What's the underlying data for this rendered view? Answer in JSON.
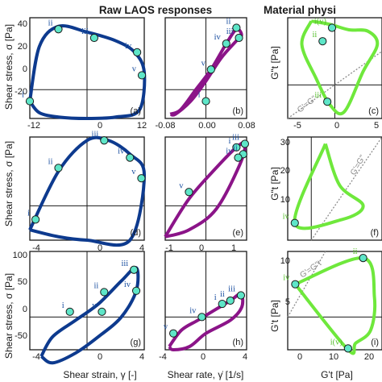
{
  "headers": {
    "left": "Raw LAOS responses",
    "right": "Material physi"
  },
  "axis_labels": {
    "shear_stress": "Shear stress, σ [Pa]",
    "shear_strain": "Shear strain, γ [-]",
    "shear_rate": "Shear rate, γ̇ [1/s]",
    "g2_top": "G\"t [Pa]",
    "g2_mid": "G\"t [Pa]",
    "g1_bottom_y": "G't [Pa]",
    "g1_x": "G't [Pa]"
  },
  "diag_labels": {
    "top": "G'=G\"",
    "mid": "G'=G\"",
    "bottom": "G'=G\"t"
  },
  "colors": {
    "blue": "#0d3a8e",
    "purple": "#8b1488",
    "green": "#6fe83c",
    "point_fill": "#5ee6c8",
    "label_blue": "#1b4fa0",
    "label_green": "#59c030",
    "grid": "#1a1a1a",
    "dotted": "#8c8c8c"
  },
  "chart_data": [
    {
      "panel": "a",
      "type": "line",
      "xlim": [
        -12,
        12
      ],
      "ylim": [
        -20,
        50
      ],
      "xticks": [
        "-12",
        "0",
        "12"
      ],
      "yticks": [
        "-20",
        "0",
        "20",
        "40"
      ],
      "series": [
        {
          "x": [
            -12,
            -10,
            -6,
            0,
            6,
            10,
            12,
            11,
            6,
            0,
            -6,
            -10,
            -12
          ],
          "y": [
            -8,
            30,
            44,
            40,
            34,
            26,
            12,
            -14,
            -19,
            -20,
            -19,
            -16,
            -8
          ]
        }
      ],
      "points": [
        {
          "label": "i",
          "x": -12,
          "y": -8
        },
        {
          "label": "ii",
          "x": -6,
          "y": 42
        },
        {
          "label": "iii",
          "x": 1.5,
          "y": 36
        },
        {
          "label": "iv",
          "x": 10.5,
          "y": 26
        },
        {
          "label": "v",
          "x": 11.5,
          "y": 10
        }
      ]
    },
    {
      "panel": "b",
      "type": "line",
      "xlim": [
        -0.08,
        0.08
      ],
      "ylim": [
        -20,
        50
      ],
      "xticks": [
        "-0.08",
        "0.00",
        "0.08"
      ],
      "yticks": [],
      "series": [
        {
          "x": [
            -0.07,
            -0.05,
            -0.02,
            0.01,
            0.04,
            0.06,
            0.07,
            0.06,
            0.03,
            0.0,
            -0.03,
            -0.06,
            -0.07
          ],
          "y": [
            -17,
            -14,
            0,
            14,
            32,
            42,
            38,
            34,
            22,
            6,
            -8,
            -17,
            -17
          ]
        }
      ],
      "points": [
        {
          "label": "i",
          "x": 0.0,
          "y": -8
        },
        {
          "label": "ii",
          "x": 0.06,
          "y": 43
        },
        {
          "label": "iii",
          "x": 0.065,
          "y": 36
        },
        {
          "label": "iv",
          "x": 0.04,
          "y": 32
        },
        {
          "label": "v",
          "x": 0.01,
          "y": 14
        }
      ]
    },
    {
      "panel": "c",
      "type": "line",
      "xlim": [
        -5,
        5
      ],
      "ylim": [
        -5,
        10
      ],
      "xticks": [
        "-5",
        "0",
        "5"
      ],
      "yticks": [],
      "series": [
        {
          "x": [
            -2.5,
            -0.5,
            1.5,
            3.5,
            4.5,
            3,
            1,
            -0.5,
            -2,
            -3.5,
            -2.5
          ],
          "y": [
            9.5,
            9,
            8.2,
            8,
            6,
            2,
            -4,
            -3,
            1,
            6,
            9.5
          ]
        }
      ],
      "points": [
        {
          "label": "i(v)",
          "x": -0.3,
          "y": 8.5
        },
        {
          "label": "ii",
          "x": -1.3,
          "y": 6.5
        },
        {
          "label": "iii",
          "x": -0.8,
          "y": -2.5
        }
      ]
    },
    {
      "panel": "d",
      "type": "line",
      "xlim": [
        -4,
        4
      ],
      "ylim": [
        -20,
        40
      ],
      "xticks": [
        "-4",
        "0",
        "4"
      ],
      "yticks": [],
      "series": [
        {
          "x": [
            -4,
            -2,
            0,
            1.5,
            3,
            4,
            3,
            0,
            -2,
            -4
          ],
          "y": [
            -14,
            20,
            38,
            38,
            30,
            18,
            -20,
            -20,
            -18,
            -14
          ]
        }
      ],
      "points": [
        {
          "label": "i",
          "x": -3.6,
          "y": -8
        },
        {
          "label": "ii",
          "x": -2,
          "y": 22
        },
        {
          "label": "iii",
          "x": 1.2,
          "y": 38
        },
        {
          "label": "iv",
          "x": 3,
          "y": 28
        },
        {
          "label": "v",
          "x": 3.8,
          "y": 16
        }
      ]
    },
    {
      "panel": "e",
      "type": "line",
      "xlim": [
        -1.2,
        1.2
      ],
      "ylim": [
        -20,
        40
      ],
      "xticks": [
        "-1",
        "0",
        "1"
      ],
      "yticks": [],
      "series": [
        {
          "x": [
            -1.2,
            -0.5,
            0.3,
            0.9,
            1.15,
            1.0,
            0.3,
            -0.5,
            -1.2
          ],
          "y": [
            -18,
            4,
            22,
            34,
            36,
            24,
            -2,
            -14,
            -18
          ]
        }
      ],
      "points": [
        {
          "label": "i",
          "x": 0.9,
          "y": 34
        },
        {
          "label": "ii",
          "x": 1.1,
          "y": 30
        },
        {
          "label": "iii",
          "x": 1.15,
          "y": 36
        },
        {
          "label": "iv",
          "x": 0.95,
          "y": 28
        },
        {
          "label": "v",
          "x": -0.5,
          "y": 8
        }
      ]
    },
    {
      "panel": "f",
      "type": "line",
      "xlim": [
        -10,
        30
      ],
      "ylim": [
        0,
        30
      ],
      "xticks": [],
      "yticks": [
        "10",
        "20",
        "30"
      ],
      "series": [
        {
          "x": [
            6,
            12,
            22,
            13,
            -7,
            6
          ],
          "y": [
            28,
            16,
            10,
            6,
            5,
            28
          ]
        }
      ],
      "points": [
        {
          "label": "iv",
          "x": -7,
          "y": 5
        }
      ]
    },
    {
      "panel": "g",
      "type": "line",
      "xlim": [
        -5,
        5
      ],
      "ylim": [
        -50,
        100
      ],
      "xticks": [
        "-4",
        "0",
        "4"
      ],
      "yticks": [
        "-50",
        "0",
        "50",
        "100"
      ],
      "series": [
        {
          "x": [
            -4,
            -3,
            -1,
            1,
            3,
            4.3,
            4.3,
            3,
            1,
            -1,
            -3,
            -4
          ],
          "y": [
            -60,
            -30,
            -5,
            20,
            55,
            75,
            40,
            0,
            -30,
            -55,
            -70,
            -60
          ]
        }
      ],
      "points": [
        {
          "label": "i",
          "x": -1.5,
          "y": 8
        },
        {
          "label": "ii",
          "x": 1.5,
          "y": 38
        },
        {
          "label": "iii",
          "x": 4.1,
          "y": 72
        },
        {
          "label": "iv",
          "x": 4.3,
          "y": 40
        },
        {
          "label": "v",
          "x": 1.3,
          "y": 8
        }
      ]
    },
    {
      "panel": "h",
      "type": "line",
      "xlim": [
        -5,
        5
      ],
      "ylim": [
        -50,
        100
      ],
      "xticks": [
        "-4",
        "0",
        "4"
      ],
      "yticks": [],
      "series": [
        {
          "x": [
            -4.5,
            -3,
            -1,
            1,
            3,
            4.3,
            4.4,
            3,
            0,
            -2,
            -4,
            -4.5
          ],
          "y": [
            -45,
            -20,
            -5,
            10,
            25,
            35,
            15,
            -5,
            -25,
            -45,
            -50,
            -45
          ]
        }
      ],
      "points": [
        {
          "label": "i",
          "x": 2,
          "y": 20
        },
        {
          "label": "ii",
          "x": 3,
          "y": 25
        },
        {
          "label": "iii",
          "x": 4.3,
          "y": 33
        },
        {
          "label": "iv",
          "x": -0.5,
          "y": 0
        },
        {
          "label": "v",
          "x": -4,
          "y": -25
        }
      ]
    },
    {
      "panel": "i",
      "type": "line",
      "xlim": [
        0,
        25
      ],
      "ylim": [
        -5,
        10
      ],
      "xticks": [
        "0",
        "10",
        "20"
      ],
      "yticks": [
        "0",
        "5",
        "10"
      ],
      "series": [
        {
          "x": [
            2,
            20,
            23,
            22,
            18,
            16,
            2
          ],
          "y": [
            5,
            9,
            3,
            -2,
            -4,
            -5,
            5
          ]
        }
      ],
      "points": [
        {
          "label": "iv",
          "x": 2,
          "y": 5
        },
        {
          "label": "ii",
          "x": 20,
          "y": 9
        },
        {
          "label": "i(v)",
          "x": 16,
          "y": -4.8
        }
      ]
    }
  ]
}
